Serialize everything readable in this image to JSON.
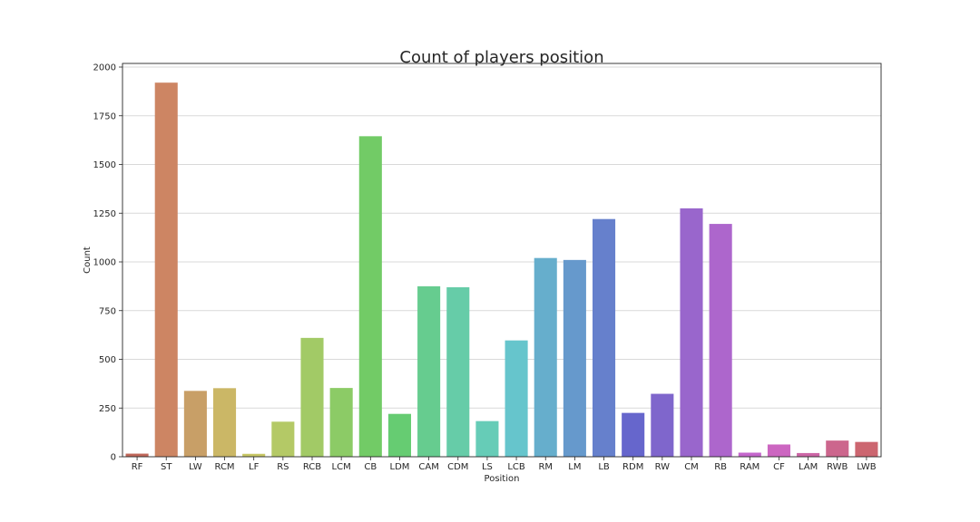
{
  "chart_data": {
    "type": "bar",
    "title": "Count of players position",
    "xlabel": "Position",
    "ylabel": "Count",
    "ylim": [
      0,
      2000
    ],
    "yticks": [
      0,
      250,
      500,
      750,
      1000,
      1250,
      1500,
      1750,
      2000
    ],
    "grid": "horizontal",
    "categories": [
      "RF",
      "ST",
      "LW",
      "RCM",
      "LF",
      "RS",
      "RCB",
      "LCM",
      "CB",
      "LDM",
      "CAM",
      "CDM",
      "LS",
      "LCB",
      "RM",
      "LM",
      "LB",
      "RDM",
      "RW",
      "CM",
      "RB",
      "RAM",
      "CF",
      "LAM",
      "RWB",
      "LWB"
    ],
    "values": [
      16,
      1920,
      338,
      352,
      15,
      180,
      610,
      353,
      1645,
      220,
      875,
      870,
      183,
      597,
      1020,
      1010,
      1220,
      225,
      323,
      1275,
      1195,
      21,
      63,
      19,
      83,
      76
    ],
    "colors": [
      "#c0675a",
      "#cd8563",
      "#c89f67",
      "#cbb766",
      "#c8c765",
      "#b4c966",
      "#a2ca66",
      "#8ccb66",
      "#72cb66",
      "#66cc72",
      "#66cc8f",
      "#66cca8",
      "#66ccb7",
      "#66c5cc",
      "#66aecc",
      "#6699cc",
      "#6680cc",
      "#6666cc",
      "#7f66cc",
      "#9966cc",
      "#ad66cc",
      "#c466cc",
      "#cc66c1",
      "#cc66a6",
      "#cc668d",
      "#cc6670"
    ]
  }
}
